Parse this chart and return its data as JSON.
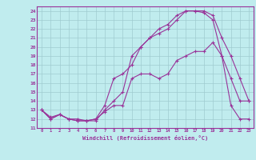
{
  "xlabel": "Windchill (Refroidissement éolien,°C)",
  "background_color": "#c0ecee",
  "grid_color": "#a0ccd0",
  "line_color": "#993399",
  "xlim": [
    -0.5,
    23.5
  ],
  "ylim": [
    11,
    24.5
  ],
  "x_ticks": [
    0,
    1,
    2,
    3,
    4,
    5,
    6,
    7,
    8,
    9,
    10,
    11,
    12,
    13,
    14,
    15,
    16,
    17,
    18,
    19,
    20,
    21,
    22,
    23
  ],
  "y_ticks": [
    11,
    12,
    13,
    14,
    15,
    16,
    17,
    18,
    19,
    20,
    21,
    22,
    23,
    24
  ],
  "series1_x": [
    0,
    1,
    2,
    3,
    4,
    5,
    6,
    7,
    8,
    9,
    10,
    11,
    12,
    13,
    14,
    15,
    16,
    17,
    18,
    19,
    20,
    21,
    22,
    23
  ],
  "series1_y": [
    13,
    12,
    12.5,
    12,
    11.8,
    11.8,
    12,
    12.8,
    13.5,
    13.5,
    16.5,
    17,
    17,
    16.5,
    17,
    18.5,
    19,
    19.5,
    19.5,
    20.5,
    19,
    16.5,
    14,
    14
  ],
  "series2_x": [
    0,
    1,
    2,
    3,
    4,
    5,
    6,
    7,
    8,
    9,
    10,
    11,
    12,
    13,
    14,
    15,
    16,
    17,
    18,
    19,
    20,
    21,
    22,
    23
  ],
  "series2_y": [
    13,
    12.2,
    12.5,
    12,
    12,
    11.8,
    11.8,
    13,
    14,
    15,
    19,
    20,
    21,
    21.5,
    22,
    23,
    24,
    24,
    23.8,
    23,
    19,
    13.5,
    12,
    12
  ],
  "series3_x": [
    0,
    1,
    2,
    3,
    4,
    5,
    6,
    7,
    8,
    9,
    10,
    11,
    12,
    13,
    14,
    15,
    16,
    17,
    18,
    19,
    20,
    21,
    22,
    23
  ],
  "series3_y": [
    13,
    12,
    12.5,
    12,
    11.8,
    11.8,
    12,
    13.5,
    16.5,
    17,
    18,
    20,
    21,
    22,
    22.5,
    23.5,
    24,
    24,
    24,
    23.5,
    21,
    19,
    16.5,
    14
  ]
}
